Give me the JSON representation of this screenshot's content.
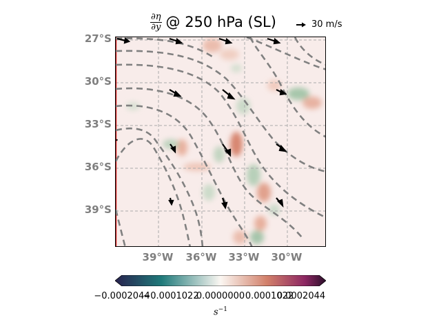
{
  "title": {
    "fraction_numerator": "∂η",
    "fraction_denominator": "∂y",
    "text": "@ 250 hPa (SL)"
  },
  "reference_vector": {
    "label": "30 m/s"
  },
  "map": {
    "lat_labels": [
      "27°S",
      "30°S",
      "33°S",
      "36°S",
      "39°S"
    ],
    "lon_labels": [
      "39°W",
      "36°W",
      "33°W",
      "30°W"
    ]
  },
  "colorbar": {
    "tick_labels": [
      "−0.0002044",
      "−0.0001022",
      "0.0000000",
      "0.0001022",
      "0.0002044"
    ],
    "label_main": "s",
    "label_exp": "−1",
    "colormap": [
      "#28224e",
      "#1f7a7a",
      "#fbf7f2",
      "#d2806a",
      "#8d2763",
      "#2b0f2a"
    ]
  }
}
